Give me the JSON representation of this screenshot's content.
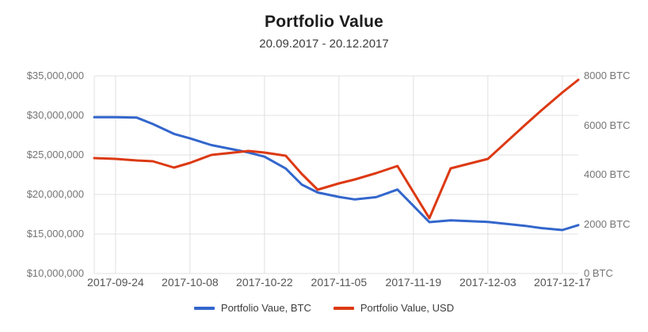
{
  "header": {
    "title": "Portfolio Value",
    "subtitle": "20.09.2017 - 20.12.2017"
  },
  "colors": {
    "background": "#ffffff",
    "grid": "#e0e0e0",
    "title_text": "#1c1c1c",
    "axis_label_text": "#757575",
    "x_label_text": "#545454",
    "btc_line": "#3366cc",
    "usd_line": "#dc3912"
  },
  "chart_data": {
    "type": "line",
    "title": "Portfolio Value",
    "subtitle": "20.09.2017 - 20.12.2017",
    "grid": true,
    "legend_position": "bottom",
    "x_axis": {
      "start_date": "2017-09-20",
      "end_date": "2017-12-20",
      "range_days": [
        0,
        91
      ],
      "tick_days": [
        4,
        18,
        32,
        46,
        60,
        74,
        88
      ],
      "tick_labels": [
        "2017-09-24",
        "2017-10-08",
        "2017-10-22",
        "2017-11-05",
        "2017-11-19",
        "2017-12-03",
        "2017-12-17"
      ]
    },
    "left_axis": {
      "unit": "USD",
      "min": 10000000,
      "max": 35000000,
      "tick_labels": [
        "$10,000,000",
        "$15,000,000",
        "$20,000,000",
        "$25,000,000",
        "$30,000,000",
        "$35,000,000"
      ]
    },
    "right_axis": {
      "unit": "BTC",
      "min": 0,
      "max": 8000,
      "tick_labels": [
        "0 BTC",
        "2000 BTC",
        "4000 BTC",
        "6000 BTC",
        "8000 BTC"
      ]
    },
    "points_days": [
      0,
      4,
      8,
      11,
      15,
      18,
      22,
      29,
      32,
      36,
      39,
      42,
      46,
      49,
      53,
      57,
      63,
      67,
      74,
      81,
      84,
      88,
      91
    ],
    "series": [
      {
        "name": "Portfolio Vaue, BTC",
        "axis": "right",
        "color": "#3366cc",
        "values": [
          6330,
          6330,
          6310,
          6050,
          5650,
          5470,
          5200,
          4900,
          4730,
          4250,
          3600,
          3280,
          3100,
          3000,
          3090,
          3400,
          2080,
          2150,
          2090,
          1930,
          1840,
          1760,
          1960
        ]
      },
      {
        "name": "Portfolio Value, USD",
        "axis": "left",
        "color": "#dc3912",
        "values": [
          24600000,
          24500000,
          24300000,
          24200000,
          23400000,
          24000000,
          25000000,
          25500000,
          25300000,
          24900000,
          22600000,
          20600000,
          21400000,
          21900000,
          22700000,
          23600000,
          17000000,
          23300000,
          24500000,
          28800000,
          30600000,
          32900000,
          34500000
        ]
      }
    ],
    "legend": [
      "Portfolio Vaue, BTC",
      "Portfolio Value, USD"
    ]
  }
}
